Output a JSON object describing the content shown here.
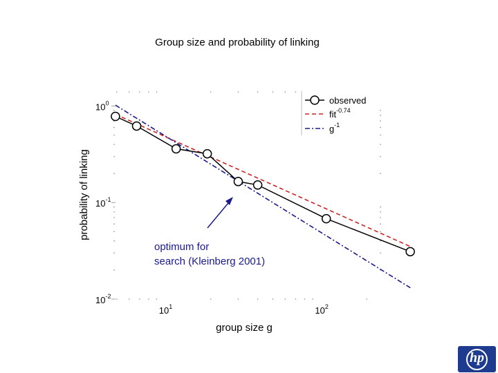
{
  "slide": {
    "title": "Group size and probability of linking",
    "annotation_lines": [
      "optimum for",
      "search (Kleinberg 2001)"
    ],
    "brand_color": "#1f3b8f",
    "logo": "hp-logo"
  },
  "chart_data": {
    "type": "line",
    "title": "",
    "xlabel": "group size g",
    "ylabel": "probability of linking",
    "xscale": "log",
    "yscale": "log",
    "xlim": [
      4,
      300
    ],
    "ylim": [
      0.01,
      1.4
    ],
    "xticks": [
      {
        "mantissa": "10",
        "exp": "1",
        "value": 10
      },
      {
        "mantissa": "10",
        "exp": "2",
        "value": 100
      }
    ],
    "yticks": [
      {
        "mantissa": "10",
        "exp": "0",
        "value": 1
      },
      {
        "mantissa": "10",
        "exp": "-1",
        "value": 0.1
      },
      {
        "mantissa": "10",
        "exp": "-2",
        "value": 0.01
      }
    ],
    "grid": "minor-dots",
    "legend_position": "top-right",
    "series": [
      {
        "name": "observed",
        "color": "#000000",
        "style": "solid-marker",
        "x": [
          4.9,
          6.7,
          12,
          19,
          30,
          40,
          110,
          380
        ],
        "y": [
          0.78,
          0.62,
          0.36,
          0.32,
          0.165,
          0.152,
          0.068,
          0.031
        ]
      },
      {
        "name": "fit",
        "label_sup": "-0.74",
        "color": "#cc2222",
        "style": "dashed",
        "x": [
          4.9,
          380
        ],
        "y": [
          0.82,
          0.035
        ]
      },
      {
        "name": "g",
        "label_sup": "-1",
        "color": "#1a1a8c",
        "style": "dashdot",
        "x": [
          4.9,
          380
        ],
        "y": [
          1.02,
          0.0131
        ]
      }
    ]
  }
}
